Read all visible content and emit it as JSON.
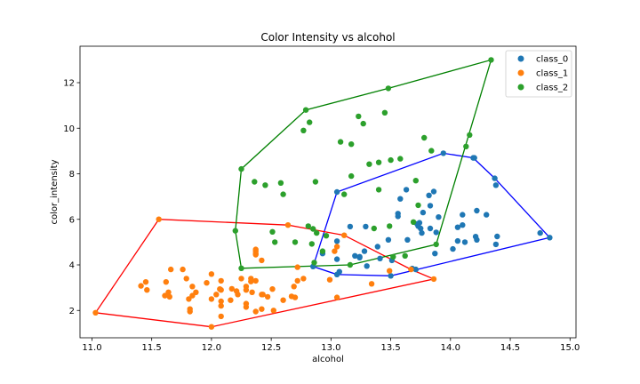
{
  "chart_data": {
    "type": "scatter",
    "title": "Color Intensity vs alcohol",
    "xlabel": "alcohol",
    "ylabel": "color_intensity",
    "xlim": [
      10.9,
      15.05
    ],
    "ylim": [
      0.8,
      13.6
    ],
    "xticks": [
      "11.0",
      "11.5",
      "12.0",
      "12.5",
      "13.0",
      "13.5",
      "14.0",
      "14.5",
      "15.0"
    ],
    "yticks": [
      "2",
      "4",
      "6",
      "8",
      "10",
      "12"
    ],
    "grid": false,
    "legend_position": "top-right",
    "series": [
      {
        "name": "class_0",
        "color": "#1f77b4",
        "points": [
          [
            13.2,
            4.4
          ],
          [
            13.16,
            5.68
          ],
          [
            14.37,
            7.8
          ],
          [
            13.24,
            4.32
          ],
          [
            14.2,
            8.7
          ],
          [
            14.39,
            5.25
          ],
          [
            14.06,
            5.05
          ],
          [
            14.83,
            5.2
          ],
          [
            13.86,
            7.22
          ],
          [
            14.1,
            5.75
          ],
          [
            14.12,
            5.0
          ],
          [
            13.75,
            5.6
          ],
          [
            14.75,
            5.4
          ],
          [
            14.38,
            7.5
          ],
          [
            13.63,
            7.3
          ],
          [
            14.3,
            6.2
          ],
          [
            13.83,
            6.6
          ],
          [
            14.19,
            8.7
          ],
          [
            13.64,
            5.1
          ],
          [
            14.06,
            5.65
          ],
          [
            12.93,
            4.5
          ],
          [
            13.71,
            3.8
          ],
          [
            12.85,
            3.93
          ],
          [
            13.5,
            3.52
          ],
          [
            13.05,
            3.58
          ],
          [
            13.39,
            4.8
          ],
          [
            13.3,
            3.95
          ],
          [
            13.87,
            4.5
          ],
          [
            14.02,
            4.7
          ],
          [
            13.73,
            5.7
          ],
          [
            13.58,
            6.9
          ],
          [
            13.68,
            3.84
          ],
          [
            13.76,
            5.4
          ],
          [
            13.51,
            4.2
          ],
          [
            13.48,
            5.1
          ],
          [
            13.28,
            4.6
          ],
          [
            13.05,
            4.25
          ],
          [
            13.07,
            3.7
          ],
          [
            14.22,
            5.1
          ],
          [
            13.56,
            6.13
          ],
          [
            13.41,
            4.28
          ],
          [
            13.88,
            5.43
          ],
          [
            13.24,
            4.36
          ],
          [
            13.05,
            5.04
          ],
          [
            14.21,
            5.24
          ],
          [
            14.38,
            4.9
          ],
          [
            13.9,
            6.1
          ],
          [
            14.1,
            6.2
          ],
          [
            13.94,
            8.9
          ],
          [
            13.05,
            7.2
          ],
          [
            13.83,
            5.6
          ],
          [
            13.82,
            7.05
          ],
          [
            13.77,
            6.3
          ],
          [
            13.74,
            5.85
          ],
          [
            13.56,
            6.25
          ],
          [
            14.22,
            6.38
          ],
          [
            13.29,
            5.68
          ],
          [
            13.72,
            5.8
          ]
        ],
        "hull": [
          [
            13.05,
            3.58
          ],
          [
            13.5,
            3.52
          ],
          [
            14.83,
            5.2
          ],
          [
            14.37,
            7.8
          ],
          [
            14.19,
            8.7
          ],
          [
            13.94,
            8.9
          ],
          [
            13.05,
            7.2
          ],
          [
            12.85,
            3.93
          ]
        ]
      },
      {
        "name": "class_1",
        "color": "#ff7f0e",
        "points": [
          [
            12.37,
            1.95
          ],
          [
            12.33,
            3.27
          ],
          [
            12.64,
            5.75
          ],
          [
            13.67,
            3.8
          ],
          [
            12.37,
            4.45
          ],
          [
            12.17,
            2.95
          ],
          [
            12.37,
            4.6
          ],
          [
            13.11,
            5.3
          ],
          [
            12.37,
            4.68
          ],
          [
            13.34,
            3.17
          ],
          [
            12.21,
            2.85
          ],
          [
            12.29,
            3.05
          ],
          [
            13.86,
            3.38
          ],
          [
            13.49,
            3.74
          ],
          [
            12.99,
            3.35
          ],
          [
            11.96,
            3.21
          ],
          [
            11.66,
            3.8
          ],
          [
            13.03,
            4.6
          ],
          [
            11.84,
            2.65
          ],
          [
            12.33,
            3.4
          ],
          [
            12.7,
            2.57
          ],
          [
            12.0,
            2.5
          ],
          [
            12.72,
            3.9
          ],
          [
            12.08,
            2.2
          ],
          [
            13.05,
            4.8
          ],
          [
            11.84,
            3.05
          ],
          [
            12.67,
            2.62
          ],
          [
            12.16,
            2.45
          ],
          [
            11.65,
            2.6
          ],
          [
            11.64,
            2.8
          ],
          [
            12.08,
            1.74
          ],
          [
            12.08,
            2.4
          ],
          [
            12.0,
            3.6
          ],
          [
            12.69,
            3.05
          ],
          [
            12.29,
            2.15
          ],
          [
            11.62,
            3.25
          ],
          [
            12.47,
            2.6
          ],
          [
            11.81,
            2.5
          ],
          [
            12.29,
            2.9
          ],
          [
            12.37,
            4.5
          ],
          [
            12.29,
            2.3
          ],
          [
            12.08,
            3.3
          ],
          [
            12.6,
            2.45
          ],
          [
            12.34,
            2.8
          ],
          [
            11.82,
            2.06
          ],
          [
            12.51,
            2.94
          ],
          [
            12.42,
            2.7
          ],
          [
            12.25,
            3.4
          ],
          [
            12.72,
            3.3
          ],
          [
            12.22,
            2.7
          ],
          [
            11.61,
            2.65
          ],
          [
            11.46,
            2.9
          ],
          [
            12.52,
            2.0
          ],
          [
            11.76,
            3.8
          ],
          [
            11.41,
            3.08
          ],
          [
            12.08,
            2.9
          ],
          [
            11.03,
            1.9
          ],
          [
            11.82,
            1.95
          ],
          [
            12.42,
            2.06
          ],
          [
            12.77,
            3.4
          ],
          [
            12.0,
            1.28
          ],
          [
            11.45,
            3.25
          ],
          [
            11.56,
            6.0
          ],
          [
            12.42,
            4.2
          ],
          [
            13.05,
            2.57
          ],
          [
            11.87,
            2.8
          ],
          [
            12.07,
            2.94
          ],
          [
            12.43,
            2.7
          ],
          [
            11.79,
            3.4
          ],
          [
            12.37,
            3.3
          ],
          [
            12.04,
            2.7
          ]
        ],
        "hull": [
          [
            11.03,
            1.9
          ],
          [
            12.0,
            1.28
          ],
          [
            13.86,
            3.38
          ],
          [
            13.67,
            3.8
          ],
          [
            13.11,
            5.3
          ],
          [
            12.64,
            5.75
          ],
          [
            11.56,
            6.0
          ]
        ]
      },
      {
        "name": "class_2",
        "color": "#2ca02c",
        "points": [
          [
            12.86,
            4.1
          ],
          [
            12.88,
            5.4
          ],
          [
            12.81,
            5.7
          ],
          [
            12.7,
            5.0
          ],
          [
            12.51,
            5.45
          ],
          [
            12.6,
            7.1
          ],
          [
            12.25,
            3.85
          ],
          [
            12.53,
            5.0
          ],
          [
            13.49,
            5.7
          ],
          [
            12.84,
            4.92
          ],
          [
            12.93,
            4.6
          ],
          [
            13.36,
            5.6
          ],
          [
            13.52,
            4.35
          ],
          [
            13.62,
            4.4
          ],
          [
            12.25,
            8.21
          ],
          [
            13.16,
            4.0
          ],
          [
            13.88,
            4.9
          ],
          [
            12.87,
            7.65
          ],
          [
            13.32,
            8.42
          ],
          [
            13.08,
            9.4
          ],
          [
            13.5,
            8.6
          ],
          [
            12.79,
            10.8
          ],
          [
            13.11,
            7.1
          ],
          [
            13.23,
            10.52
          ],
          [
            12.58,
            7.6
          ],
          [
            13.17,
            7.9
          ],
          [
            13.84,
            9.01
          ],
          [
            12.45,
            7.5
          ],
          [
            14.34,
            13.0
          ],
          [
            13.48,
            11.75
          ],
          [
            12.36,
            7.65
          ],
          [
            13.69,
            5.88
          ],
          [
            12.85,
            5.58
          ],
          [
            12.96,
            5.28
          ],
          [
            13.78,
            9.58
          ],
          [
            13.73,
            6.62
          ],
          [
            13.45,
            10.68
          ],
          [
            12.82,
            10.26
          ],
          [
            13.58,
            8.66
          ],
          [
            13.4,
            8.5
          ],
          [
            12.2,
            5.5
          ],
          [
            12.77,
            9.899
          ],
          [
            14.16,
            9.7
          ],
          [
            13.71,
            7.7
          ],
          [
            13.4,
            7.3
          ],
          [
            13.27,
            10.2
          ],
          [
            13.17,
            9.3
          ],
          [
            14.13,
            9.2
          ]
        ],
        "hull": [
          [
            12.2,
            5.5
          ],
          [
            12.25,
            3.85
          ],
          [
            13.16,
            4.0
          ],
          [
            13.88,
            4.9
          ],
          [
            14.34,
            13.0
          ],
          [
            13.48,
            11.75
          ],
          [
            12.79,
            10.8
          ],
          [
            12.25,
            8.21
          ]
        ]
      }
    ]
  }
}
